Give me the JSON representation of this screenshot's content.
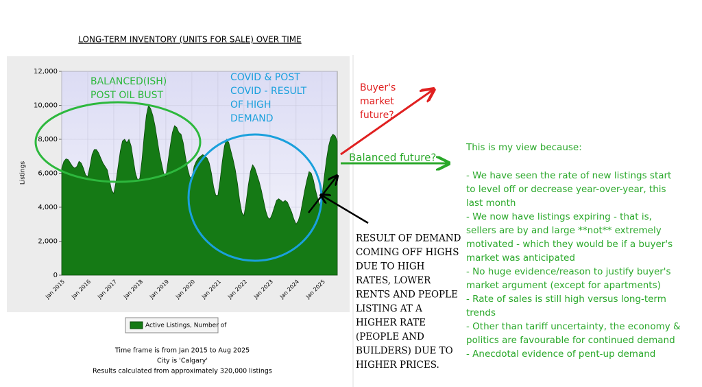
{
  "chart_data": {
    "type": "area",
    "title": "LONG-TERM INVENTORY (UNITS FOR SALE) OVER TIME",
    "y_label": "Listings",
    "categories": [
      "Jan 2015",
      null,
      null,
      null,
      null,
      null,
      null,
      null,
      null,
      null,
      null,
      null,
      "Jan 2016",
      null,
      null,
      null,
      null,
      null,
      null,
      null,
      null,
      null,
      null,
      null,
      "Jan 2017",
      null,
      null,
      null,
      null,
      null,
      null,
      null,
      null,
      null,
      null,
      null,
      "Jan 2018",
      null,
      null,
      null,
      null,
      null,
      null,
      null,
      null,
      null,
      null,
      null,
      "Jan 2019",
      null,
      null,
      null,
      null,
      null,
      null,
      null,
      null,
      null,
      null,
      null,
      "Jan 2020",
      null,
      null,
      null,
      null,
      null,
      null,
      null,
      null,
      null,
      null,
      null,
      "Jan 2021",
      null,
      null,
      null,
      null,
      null,
      null,
      null,
      null,
      null,
      null,
      null,
      "Jan 2022",
      null,
      null,
      null,
      null,
      null,
      null,
      null,
      null,
      null,
      null,
      null,
      "Jan 2023",
      null,
      null,
      null,
      null,
      null,
      null,
      null,
      null,
      null,
      null,
      null,
      "Jan 2024",
      null,
      null,
      null,
      null,
      null,
      null,
      null,
      null,
      null,
      null,
      null,
      "Jan 2025",
      null,
      null,
      null,
      null,
      null,
      null,
      null
    ],
    "series": [
      {
        "name": "Active Listings, Number of",
        "color": "#157a15",
        "values": [
          6300,
          6700,
          6850,
          6800,
          6600,
          6400,
          6300,
          6400,
          6700,
          6600,
          6300,
          5900,
          5800,
          6400,
          7100,
          7400,
          7400,
          7200,
          6900,
          6600,
          6400,
          6200,
          5600,
          5000,
          4800,
          5500,
          6400,
          7300,
          7900,
          8000,
          7800,
          8000,
          7600,
          6800,
          6000,
          5600,
          5700,
          6800,
          8200,
          9400,
          10000,
          9800,
          9400,
          8800,
          8000,
          7200,
          6600,
          6000,
          5800,
          6700,
          7600,
          8400,
          8800,
          8700,
          8400,
          8300,
          7800,
          7000,
          6300,
          5800,
          5700,
          6400,
          6700,
          6900,
          7000,
          7100,
          7000,
          6900,
          6600,
          6000,
          5200,
          4700,
          4700,
          5600,
          6700,
          7600,
          8000,
          7800,
          7300,
          6800,
          6200,
          5400,
          4400,
          3700,
          3500,
          4300,
          5300,
          6100,
          6500,
          6300,
          5900,
          5500,
          5000,
          4400,
          3800,
          3400,
          3300,
          3600,
          4000,
          4400,
          4500,
          4400,
          4300,
          4400,
          4300,
          4000,
          3700,
          3300,
          3000,
          3200,
          3600,
          4300,
          5000,
          5600,
          6100,
          6000,
          5600,
          5000,
          4500,
          4100,
          4700,
          5800,
          6800,
          7600,
          8100,
          8300,
          8200,
          7900
        ]
      }
    ],
    "ylim": [
      0,
      12000
    ],
    "yticks": [
      0,
      {
        "value": 2000,
        "label": "2,000"
      },
      {
        "value": 4000,
        "label": "4,000"
      },
      {
        "value": 6000,
        "label": "6,000"
      },
      {
        "value": 8000,
        "label": "8,000"
      },
      {
        "value": 10000,
        "label": "10,000"
      },
      {
        "value": 12000,
        "label": "12,000"
      }
    ],
    "grid": true,
    "footer": [
      "Time frame is from Jan 2015 to Aug 2025",
      "City is 'Calgary'",
      "Results calculated from approximately 320,000 listings"
    ],
    "annotations": {
      "balanced": [
        "BALANCED(ISH)",
        "POST OIL BUST"
      ],
      "covid": [
        "COVID & POST",
        "COVID - RESULT",
        "OF HIGH",
        "DEMAND"
      ],
      "buyers": [
        "Buyer's",
        "market",
        "future?"
      ],
      "balanced_future": "Balanced future?",
      "result": [
        "RESULT OF DEMAND",
        "COMING OFF HIGHS",
        "DUE TO HIGH",
        "RATES, LOWER",
        "RENTS AND PEOPLE",
        "LISTING AT A",
        "HIGHER RATE",
        "(PEOPLE AND",
        "BUILDERS) DUE TO",
        "HIGHER PRICES."
      ],
      "view": [
        "This is my view because:",
        "- We have seen the rate of new listings start",
        "to level off or decrease year-over-year, this",
        "last month",
        "- We now have listings expiring - that is,",
        "sellers are by and large **not** extremely",
        "motivated - which they would be if a buyer's",
        "market was anticipated",
        "- No huge evidence/reason to justify buyer's",
        "market argument (except for apartments)",
        "- Rate of sales is still high versus long-term",
        "trends",
        "- Other than tariff uncertainty, the economy &",
        "politics are favourable for continued demand",
        "- Anecdotal evidence of pent-up demand"
      ]
    }
  }
}
